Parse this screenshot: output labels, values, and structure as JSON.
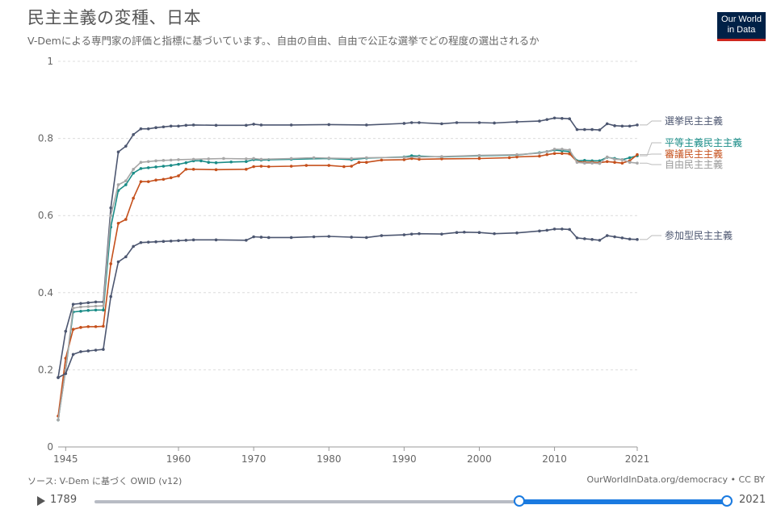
{
  "header": {
    "title": "民主主義の変種、日本",
    "subtitle": "V-Demによる専門家の評価と指標に基づいています。、自由の自由、自由で公正な選挙でどの程度の選出されるか",
    "logo_line1": "Our World",
    "logo_line2": "in Data"
  },
  "footer": {
    "source": "ソース: V-Dem に基づく OWID (v12)",
    "credit": "OurWorldInData.org/democracy • CC BY"
  },
  "timeline": {
    "start_year": "1789",
    "end_year": "2021",
    "selected_range": [
      1945,
      2021
    ]
  },
  "chart_data": {
    "type": "line",
    "xlim": [
      1944,
      2021
    ],
    "ylim": [
      0,
      1
    ],
    "x_ticks": [
      "1945",
      "1960",
      "1970",
      "1980",
      "1990",
      "2000",
      "2010",
      "2021"
    ],
    "y_ticks": [
      "0",
      "0.2",
      "0.4",
      "0.6",
      "0.8",
      "1"
    ],
    "grid": "horizontal dashed",
    "series": [
      {
        "name": "選挙民主主義",
        "color": "#4c5670",
        "points": [
          [
            1944,
            0.18
          ],
          [
            1945,
            0.3
          ],
          [
            1946,
            0.37
          ],
          [
            1947,
            0.372
          ],
          [
            1948,
            0.374
          ],
          [
            1949,
            0.376
          ],
          [
            1950,
            0.376
          ],
          [
            1951,
            0.62
          ],
          [
            1952,
            0.765
          ],
          [
            1953,
            0.78
          ],
          [
            1954,
            0.81
          ],
          [
            1955,
            0.825
          ],
          [
            1956,
            0.825
          ],
          [
            1957,
            0.828
          ],
          [
            1958,
            0.83
          ],
          [
            1959,
            0.832
          ],
          [
            1960,
            0.832
          ],
          [
            1961,
            0.834
          ],
          [
            1962,
            0.835
          ],
          [
            1965,
            0.834
          ],
          [
            1969,
            0.834
          ],
          [
            1970,
            0.837
          ],
          [
            1971,
            0.835
          ],
          [
            1975,
            0.835
          ],
          [
            1980,
            0.836
          ],
          [
            1985,
            0.835
          ],
          [
            1990,
            0.839
          ],
          [
            1991,
            0.841
          ],
          [
            1992,
            0.841
          ],
          [
            1995,
            0.838
          ],
          [
            1997,
            0.841
          ],
          [
            2000,
            0.841
          ],
          [
            2002,
            0.84
          ],
          [
            2005,
            0.843
          ],
          [
            2008,
            0.845
          ],
          [
            2009,
            0.849
          ],
          [
            2010,
            0.853
          ],
          [
            2011,
            0.852
          ],
          [
            2012,
            0.851
          ],
          [
            2013,
            0.823
          ],
          [
            2014,
            0.823
          ],
          [
            2015,
            0.823
          ],
          [
            2016,
            0.822
          ],
          [
            2017,
            0.838
          ],
          [
            2018,
            0.833
          ],
          [
            2019,
            0.832
          ],
          [
            2020,
            0.832
          ],
          [
            2021,
            0.835
          ]
        ]
      },
      {
        "name": "平等主義民主主義",
        "color": "#1a8c87",
        "points": [
          [
            1944,
            0.07
          ],
          [
            1945,
            0.2
          ],
          [
            1946,
            0.35
          ],
          [
            1947,
            0.352
          ],
          [
            1948,
            0.354
          ],
          [
            1949,
            0.355
          ],
          [
            1950,
            0.355
          ],
          [
            1951,
            0.57
          ],
          [
            1952,
            0.665
          ],
          [
            1953,
            0.68
          ],
          [
            1954,
            0.71
          ],
          [
            1955,
            0.722
          ],
          [
            1956,
            0.724
          ],
          [
            1957,
            0.726
          ],
          [
            1958,
            0.728
          ],
          [
            1959,
            0.73
          ],
          [
            1960,
            0.733
          ],
          [
            1961,
            0.737
          ],
          [
            1962,
            0.742
          ],
          [
            1963,
            0.742
          ],
          [
            1964,
            0.738
          ],
          [
            1965,
            0.737
          ],
          [
            1967,
            0.739
          ],
          [
            1969,
            0.74
          ],
          [
            1970,
            0.745
          ],
          [
            1971,
            0.744
          ],
          [
            1972,
            0.745
          ],
          [
            1975,
            0.746
          ],
          [
            1980,
            0.748
          ],
          [
            1983,
            0.745
          ],
          [
            1985,
            0.749
          ],
          [
            1990,
            0.752
          ],
          [
            1991,
            0.755
          ],
          [
            1992,
            0.754
          ],
          [
            1995,
            0.752
          ],
          [
            2000,
            0.755
          ],
          [
            2005,
            0.757
          ],
          [
            2008,
            0.763
          ],
          [
            2009,
            0.766
          ],
          [
            2010,
            0.77
          ],
          [
            2011,
            0.768
          ],
          [
            2012,
            0.766
          ],
          [
            2013,
            0.742
          ],
          [
            2014,
            0.743
          ],
          [
            2015,
            0.742
          ],
          [
            2016,
            0.742
          ],
          [
            2017,
            0.751
          ],
          [
            2018,
            0.748
          ],
          [
            2019,
            0.745
          ],
          [
            2020,
            0.75
          ],
          [
            2021,
            0.755
          ]
        ]
      },
      {
        "name": "審議民主主義",
        "color": "#c5501c",
        "points": [
          [
            1944,
            0.08
          ],
          [
            1945,
            0.23
          ],
          [
            1946,
            0.305
          ],
          [
            1947,
            0.31
          ],
          [
            1948,
            0.312
          ],
          [
            1949,
            0.312
          ],
          [
            1950,
            0.313
          ],
          [
            1951,
            0.475
          ],
          [
            1952,
            0.58
          ],
          [
            1953,
            0.59
          ],
          [
            1954,
            0.645
          ],
          [
            1955,
            0.688
          ],
          [
            1956,
            0.688
          ],
          [
            1957,
            0.692
          ],
          [
            1958,
            0.694
          ],
          [
            1959,
            0.698
          ],
          [
            1960,
            0.703
          ],
          [
            1961,
            0.72
          ],
          [
            1962,
            0.72
          ],
          [
            1965,
            0.719
          ],
          [
            1969,
            0.72
          ],
          [
            1970,
            0.727
          ],
          [
            1971,
            0.728
          ],
          [
            1972,
            0.727
          ],
          [
            1975,
            0.728
          ],
          [
            1977,
            0.73
          ],
          [
            1980,
            0.73
          ],
          [
            1982,
            0.727
          ],
          [
            1983,
            0.728
          ],
          [
            1984,
            0.738
          ],
          [
            1985,
            0.738
          ],
          [
            1987,
            0.744
          ],
          [
            1990,
            0.745
          ],
          [
            1991,
            0.748
          ],
          [
            1992,
            0.746
          ],
          [
            1995,
            0.747
          ],
          [
            2000,
            0.748
          ],
          [
            2004,
            0.75
          ],
          [
            2005,
            0.752
          ],
          [
            2008,
            0.754
          ],
          [
            2009,
            0.758
          ],
          [
            2010,
            0.761
          ],
          [
            2011,
            0.761
          ],
          [
            2012,
            0.76
          ],
          [
            2013,
            0.74
          ],
          [
            2014,
            0.738
          ],
          [
            2015,
            0.738
          ],
          [
            2016,
            0.737
          ],
          [
            2017,
            0.74
          ],
          [
            2018,
            0.738
          ],
          [
            2019,
            0.736
          ],
          [
            2020,
            0.742
          ],
          [
            2021,
            0.758
          ]
        ]
      },
      {
        "name": "自由民主主義",
        "color": "#a7a7a7",
        "points": [
          [
            1944,
            0.07
          ],
          [
            1945,
            0.2
          ],
          [
            1946,
            0.36
          ],
          [
            1947,
            0.363
          ],
          [
            1948,
            0.364
          ],
          [
            1949,
            0.365
          ],
          [
            1950,
            0.366
          ],
          [
            1951,
            0.6
          ],
          [
            1952,
            0.68
          ],
          [
            1953,
            0.69
          ],
          [
            1954,
            0.72
          ],
          [
            1955,
            0.738
          ],
          [
            1956,
            0.74
          ],
          [
            1957,
            0.742
          ],
          [
            1958,
            0.743
          ],
          [
            1959,
            0.744
          ],
          [
            1960,
            0.745
          ],
          [
            1962,
            0.746
          ],
          [
            1964,
            0.747
          ],
          [
            1966,
            0.748
          ],
          [
            1969,
            0.747
          ],
          [
            1970,
            0.748
          ],
          [
            1971,
            0.746
          ],
          [
            1975,
            0.748
          ],
          [
            1978,
            0.75
          ],
          [
            1980,
            0.749
          ],
          [
            1983,
            0.748
          ],
          [
            1985,
            0.75
          ],
          [
            1990,
            0.751
          ],
          [
            1992,
            0.752
          ],
          [
            1995,
            0.753
          ],
          [
            2000,
            0.756
          ],
          [
            2005,
            0.758
          ],
          [
            2008,
            0.762
          ],
          [
            2009,
            0.766
          ],
          [
            2010,
            0.772
          ],
          [
            2011,
            0.772
          ],
          [
            2012,
            0.77
          ],
          [
            2013,
            0.738
          ],
          [
            2014,
            0.736
          ],
          [
            2015,
            0.736
          ],
          [
            2016,
            0.735
          ],
          [
            2017,
            0.752
          ],
          [
            2018,
            0.746
          ],
          [
            2019,
            0.745
          ],
          [
            2020,
            0.738
          ],
          [
            2021,
            0.736
          ]
        ]
      },
      {
        "name": "参加型民主主義",
        "color": "#4c5670",
        "points": [
          [
            1944,
            0.18
          ],
          [
            1945,
            0.19
          ],
          [
            1946,
            0.24
          ],
          [
            1947,
            0.247
          ],
          [
            1948,
            0.249
          ],
          [
            1949,
            0.251
          ],
          [
            1950,
            0.253
          ],
          [
            1951,
            0.39
          ],
          [
            1952,
            0.48
          ],
          [
            1953,
            0.493
          ],
          [
            1954,
            0.52
          ],
          [
            1955,
            0.53
          ],
          [
            1956,
            0.531
          ],
          [
            1957,
            0.532
          ],
          [
            1958,
            0.533
          ],
          [
            1959,
            0.534
          ],
          [
            1960,
            0.535
          ],
          [
            1961,
            0.536
          ],
          [
            1962,
            0.537
          ],
          [
            1965,
            0.537
          ],
          [
            1969,
            0.536
          ],
          [
            1970,
            0.545
          ],
          [
            1971,
            0.544
          ],
          [
            1972,
            0.543
          ],
          [
            1975,
            0.543
          ],
          [
            1978,
            0.545
          ],
          [
            1980,
            0.546
          ],
          [
            1983,
            0.544
          ],
          [
            1985,
            0.543
          ],
          [
            1987,
            0.548
          ],
          [
            1990,
            0.55
          ],
          [
            1991,
            0.552
          ],
          [
            1992,
            0.553
          ],
          [
            1995,
            0.552
          ],
          [
            1997,
            0.556
          ],
          [
            1998,
            0.557
          ],
          [
            2000,
            0.556
          ],
          [
            2002,
            0.553
          ],
          [
            2005,
            0.555
          ],
          [
            2008,
            0.56
          ],
          [
            2009,
            0.562
          ],
          [
            2010,
            0.565
          ],
          [
            2011,
            0.565
          ],
          [
            2012,
            0.564
          ],
          [
            2013,
            0.542
          ],
          [
            2014,
            0.54
          ],
          [
            2015,
            0.538
          ],
          [
            2016,
            0.536
          ],
          [
            2017,
            0.548
          ],
          [
            2018,
            0.545
          ],
          [
            2019,
            0.542
          ],
          [
            2020,
            0.539
          ],
          [
            2021,
            0.538
          ]
        ]
      }
    ],
    "legend_labels": [
      {
        "text": "選挙民主主義",
        "series": 0
      },
      {
        "text": "平等主義民主主義",
        "series": 1
      },
      {
        "text": "審議民主主義",
        "series": 2
      },
      {
        "text": "自由民主主義",
        "series": 3
      },
      {
        "text": "参加型民主主義",
        "series": 4
      }
    ]
  }
}
